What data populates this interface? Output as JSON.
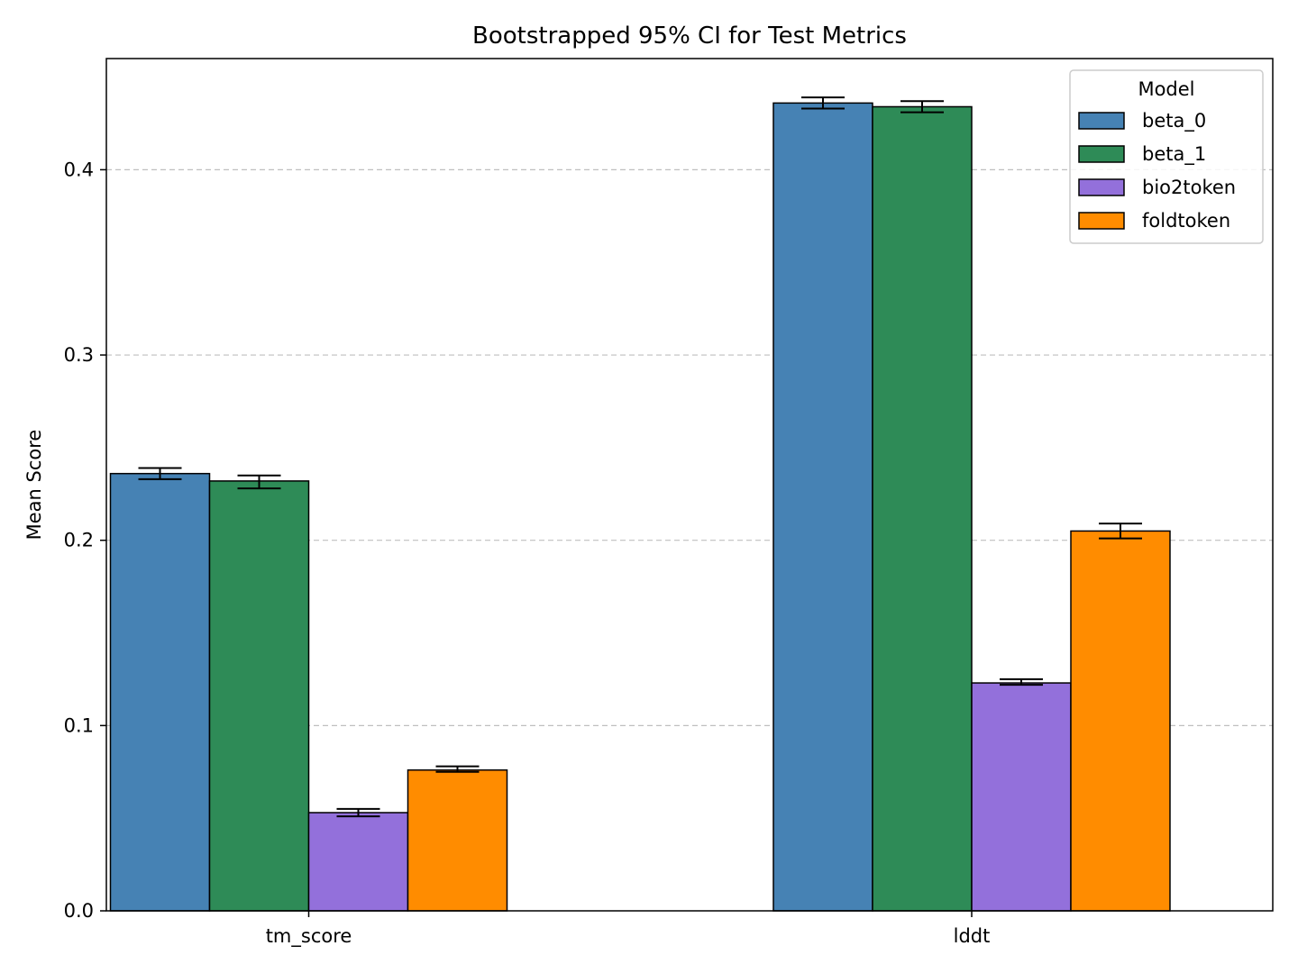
{
  "chart_data": {
    "type": "bar",
    "title": "Bootstrapped 95% CI for Test Metrics",
    "xlabel": "",
    "ylabel": "Mean Score",
    "categories": [
      "tm_score",
      "lddt"
    ],
    "ylim": [
      0,
      0.46
    ],
    "yticks": [
      0.0,
      0.1,
      0.2,
      0.3,
      0.4
    ],
    "ytick_labels": [
      "0.0",
      "0.1",
      "0.2",
      "0.3",
      "0.4"
    ],
    "grid": "y-dashed",
    "legend": {
      "title": "Model",
      "placement": "top-right"
    },
    "series": [
      {
        "name": "beta_0",
        "color": "#4682b4",
        "values": [
          0.236,
          0.436
        ],
        "ci_low": [
          0.233,
          0.433
        ],
        "ci_high": [
          0.239,
          0.439
        ]
      },
      {
        "name": "beta_1",
        "color": "#2e8b57",
        "values": [
          0.232,
          0.434
        ],
        "ci_low": [
          0.228,
          0.431
        ],
        "ci_high": [
          0.235,
          0.437
        ]
      },
      {
        "name": "bio2token",
        "color": "#9370db",
        "values": [
          0.053,
          0.123
        ],
        "ci_low": [
          0.051,
          0.122
        ],
        "ci_high": [
          0.055,
          0.125
        ]
      },
      {
        "name": "foldtoken",
        "color": "#ff8c00",
        "values": [
          0.076,
          0.205
        ],
        "ci_low": [
          0.075,
          0.201
        ],
        "ci_high": [
          0.078,
          0.209
        ]
      }
    ]
  }
}
